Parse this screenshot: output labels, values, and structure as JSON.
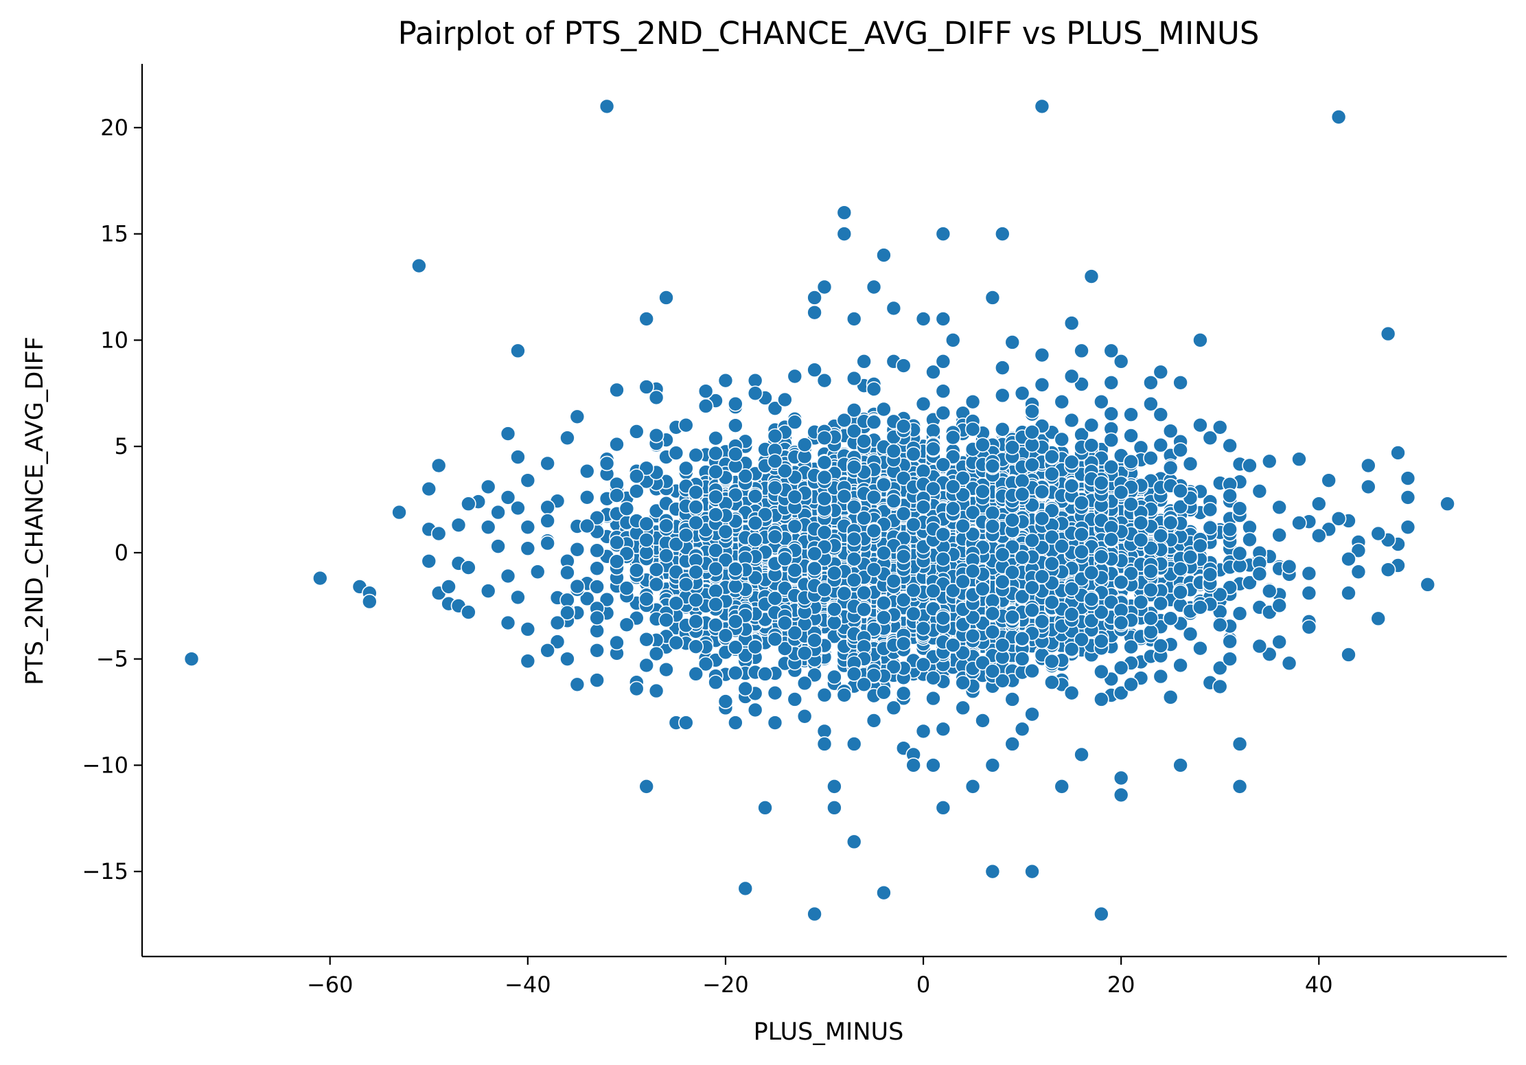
{
  "chart_data": {
    "type": "scatter",
    "title": "Pairplot of PTS_2ND_CHANCE_AVG_DIFF vs PLUS_MINUS",
    "xlabel": "PLUS_MINUS",
    "ylabel": "PTS_2ND_CHANCE_AVG_DIFF",
    "xlim": [
      -79,
      59
    ],
    "ylim": [
      -19,
      23
    ],
    "xticks": [
      -60,
      -40,
      -20,
      0,
      20,
      40
    ],
    "yticks": [
      -15,
      -10,
      -5,
      0,
      5,
      10,
      15,
      20
    ],
    "xtick_labels": [
      "−60",
      "−40",
      "−20",
      "0",
      "20",
      "40"
    ],
    "ytick_labels": [
      "−15",
      "−10",
      "−5",
      "0",
      "5",
      "10",
      "15",
      "20"
    ],
    "grid": false,
    "legend": "none",
    "point_color": "#1f77b4",
    "point_edge_color": "#ffffff",
    "note_dense_core": "Dense core of several thousand points centered near (0, 0), spanning roughly x -38..40 and y -7..8; listed points below are the clearly distinguishable ones.",
    "points": [
      {
        "x": -32,
        "y": 21
      },
      {
        "x": 12,
        "y": 21
      },
      {
        "x": 42,
        "y": 20.5
      },
      {
        "x": -8,
        "y": 16
      },
      {
        "x": -8,
        "y": 15
      },
      {
        "x": 2,
        "y": 15
      },
      {
        "x": 8,
        "y": 15
      },
      {
        "x": -4,
        "y": 14
      },
      {
        "x": -51,
        "y": 13.5
      },
      {
        "x": 17,
        "y": 13
      },
      {
        "x": -26,
        "y": 12
      },
      {
        "x": -11,
        "y": 12
      },
      {
        "x": 7,
        "y": 12
      },
      {
        "x": -10,
        "y": 12.5
      },
      {
        "x": -5,
        "y": 12.5
      },
      {
        "x": -11,
        "y": 11.3
      },
      {
        "x": -7,
        "y": 11
      },
      {
        "x": -28,
        "y": 11
      },
      {
        "x": -3,
        "y": 11.5
      },
      {
        "x": 0,
        "y": 11
      },
      {
        "x": 2,
        "y": 11
      },
      {
        "x": 15,
        "y": 10.8
      },
      {
        "x": -41,
        "y": 9.5
      },
      {
        "x": 3,
        "y": 10
      },
      {
        "x": 28,
        "y": 10
      },
      {
        "x": 47,
        "y": 10.3
      },
      {
        "x": 9,
        "y": 9.9
      },
      {
        "x": 12,
        "y": 9.3
      },
      {
        "x": 16,
        "y": 9.5
      },
      {
        "x": 19,
        "y": 9.5
      },
      {
        "x": 20,
        "y": 9
      },
      {
        "x": 2,
        "y": 9
      },
      {
        "x": -6,
        "y": 9
      },
      {
        "x": -3,
        "y": 9
      },
      {
        "x": 1,
        "y": 8.5
      },
      {
        "x": 8,
        "y": 8.7
      },
      {
        "x": 24,
        "y": 8.5
      },
      {
        "x": -42,
        "y": 5.6
      },
      {
        "x": -35,
        "y": 6.4
      },
      {
        "x": -36,
        "y": 5.4
      },
      {
        "x": -38,
        "y": 4.2
      },
      {
        "x": -41,
        "y": 4.5
      },
      {
        "x": -40,
        "y": 3.4
      },
      {
        "x": -49,
        "y": 4.1
      },
      {
        "x": -50,
        "y": 3
      },
      {
        "x": -44,
        "y": 3.1
      },
      {
        "x": -45,
        "y": 2.4
      },
      {
        "x": -46,
        "y": 2.3
      },
      {
        "x": -43,
        "y": 1.9
      },
      {
        "x": -42,
        "y": 2.6
      },
      {
        "x": -53,
        "y": 1.9
      },
      {
        "x": -50,
        "y": 1.1
      },
      {
        "x": -49,
        "y": 0.9
      },
      {
        "x": -47,
        "y": 1.3
      },
      {
        "x": -44,
        "y": 1.2
      },
      {
        "x": -41,
        "y": 2.1
      },
      {
        "x": -40,
        "y": 1.2
      },
      {
        "x": -50,
        "y": -0.4
      },
      {
        "x": -47,
        "y": -0.5
      },
      {
        "x": -46,
        "y": -0.7
      },
      {
        "x": -43,
        "y": 0.3
      },
      {
        "x": -40,
        "y": 0.2
      },
      {
        "x": -38,
        "y": 1.5
      },
      {
        "x": -61,
        "y": -1.2
      },
      {
        "x": -57,
        "y": -1.6
      },
      {
        "x": -56,
        "y": -1.9
      },
      {
        "x": -56,
        "y": -2.3
      },
      {
        "x": -49,
        "y": -1.9
      },
      {
        "x": -48,
        "y": -1.6
      },
      {
        "x": -48,
        "y": -2.4
      },
      {
        "x": -47,
        "y": -2.5
      },
      {
        "x": -46,
        "y": -2.8
      },
      {
        "x": -44,
        "y": -1.8
      },
      {
        "x": -42,
        "y": -1.1
      },
      {
        "x": -41,
        "y": -2.1
      },
      {
        "x": -42,
        "y": -3.3
      },
      {
        "x": -39,
        "y": -0.9
      },
      {
        "x": -37,
        "y": -3.3
      },
      {
        "x": -40,
        "y": -3.6
      },
      {
        "x": -38,
        "y": -4.6
      },
      {
        "x": -40,
        "y": -5.1
      },
      {
        "x": -36,
        "y": -5
      },
      {
        "x": -35,
        "y": -6.2
      },
      {
        "x": -33,
        "y": -4.6
      },
      {
        "x": -33,
        "y": -6
      },
      {
        "x": -74,
        "y": -5
      },
      {
        "x": -28,
        "y": -11
      },
      {
        "x": -25,
        "y": -8
      },
      {
        "x": -24,
        "y": -8
      },
      {
        "x": -19,
        "y": -8
      },
      {
        "x": -20,
        "y": -7.3
      },
      {
        "x": -15,
        "y": -8
      },
      {
        "x": -12,
        "y": -7.7
      },
      {
        "x": -10,
        "y": -8.4
      },
      {
        "x": -10,
        "y": -9
      },
      {
        "x": -7,
        "y": -9
      },
      {
        "x": -2,
        "y": -9.2
      },
      {
        "x": -1,
        "y": -9.5
      },
      {
        "x": -1,
        "y": -10
      },
      {
        "x": 1,
        "y": -10
      },
      {
        "x": 2,
        "y": -8.3
      },
      {
        "x": 7,
        "y": -10
      },
      {
        "x": 9,
        "y": -9
      },
      {
        "x": 10,
        "y": -8.3
      },
      {
        "x": 16,
        "y": -9.5
      },
      {
        "x": 20,
        "y": -10.6
      },
      {
        "x": 20,
        "y": -11.4
      },
      {
        "x": 26,
        "y": -10
      },
      {
        "x": 32,
        "y": -9
      },
      {
        "x": 32,
        "y": -11
      },
      {
        "x": 5,
        "y": -11
      },
      {
        "x": 14,
        "y": -11
      },
      {
        "x": -9,
        "y": -11
      },
      {
        "x": -16,
        "y": -12
      },
      {
        "x": -9,
        "y": -12
      },
      {
        "x": 2,
        "y": -12
      },
      {
        "x": -7,
        "y": -13.6
      },
      {
        "x": -18,
        "y": -15.8
      },
      {
        "x": -4,
        "y": -16
      },
      {
        "x": 7,
        "y": -15
      },
      {
        "x": 11,
        "y": -15
      },
      {
        "x": -11,
        "y": -17
      },
      {
        "x": 18,
        "y": -17
      },
      {
        "x": 53,
        "y": 2.3
      },
      {
        "x": 51,
        "y": -1.5
      },
      {
        "x": 49,
        "y": 3.5
      },
      {
        "x": 49,
        "y": 2.6
      },
      {
        "x": 49,
        "y": 1.2
      },
      {
        "x": 48,
        "y": 4.7
      },
      {
        "x": 48,
        "y": 0.4
      },
      {
        "x": 48,
        "y": -0.6
      },
      {
        "x": 47,
        "y": 0.6
      },
      {
        "x": 47,
        "y": -0.8
      },
      {
        "x": 46,
        "y": 0.9
      },
      {
        "x": 46,
        "y": -3.1
      },
      {
        "x": 45,
        "y": 4.1
      },
      {
        "x": 45,
        "y": 3.1
      },
      {
        "x": 44,
        "y": 0.5
      },
      {
        "x": 44,
        "y": 0.1
      },
      {
        "x": 44,
        "y": -0.9
      },
      {
        "x": 43,
        "y": 1.5
      },
      {
        "x": 43,
        "y": -0.3
      },
      {
        "x": 43,
        "y": -1.9
      },
      {
        "x": 43,
        "y": -4.8
      },
      {
        "x": 42,
        "y": 1.6
      },
      {
        "x": 41,
        "y": 3.4
      },
      {
        "x": 41,
        "y": 1.1
      },
      {
        "x": 40,
        "y": 2.3
      },
      {
        "x": 40,
        "y": 0.8
      },
      {
        "x": 39,
        "y": -1.9
      },
      {
        "x": 39,
        "y": -3.5
      },
      {
        "x": 38,
        "y": 4.4
      },
      {
        "x": 38,
        "y": 1.4
      },
      {
        "x": 37,
        "y": -5.2
      },
      {
        "x": 36,
        "y": -4.2
      },
      {
        "x": 35,
        "y": 4.3
      },
      {
        "x": 34,
        "y": -4.4
      },
      {
        "x": 33,
        "y": 4.1
      },
      {
        "x": 31,
        "y": -5
      },
      {
        "x": 30,
        "y": 5.9
      },
      {
        "x": 30,
        "y": -6.3
      },
      {
        "x": 29,
        "y": 5.4
      },
      {
        "x": 28,
        "y": 6
      },
      {
        "x": 28,
        "y": -4.5
      },
      {
        "x": 26,
        "y": 8
      },
      {
        "x": 26,
        "y": -5.3
      },
      {
        "x": 24,
        "y": 6.5
      },
      {
        "x": 23,
        "y": 7
      },
      {
        "x": 23,
        "y": 8
      },
      {
        "x": 21,
        "y": 6.5
      },
      {
        "x": 20,
        "y": -6.6
      },
      {
        "x": 19,
        "y": 8
      },
      {
        "x": 18,
        "y": 7.1
      },
      {
        "x": 18,
        "y": -6.9
      },
      {
        "x": 17,
        "y": 6
      },
      {
        "x": 15,
        "y": 8.3
      },
      {
        "x": 14,
        "y": 7.1
      },
      {
        "x": 12,
        "y": 7.9
      },
      {
        "x": 10,
        "y": 7.5
      },
      {
        "x": 8,
        "y": 7.4
      },
      {
        "x": 5,
        "y": 7.1
      },
      {
        "x": 2,
        "y": 7.6
      },
      {
        "x": 0,
        "y": 7
      },
      {
        "x": -2,
        "y": 8.8
      },
      {
        "x": -5,
        "y": 7.7
      },
      {
        "x": -7,
        "y": 8.2
      },
      {
        "x": -10,
        "y": 8.1
      },
      {
        "x": -13,
        "y": 8.3
      },
      {
        "x": -17,
        "y": 8.1
      },
      {
        "x": -17,
        "y": 7.5
      },
      {
        "x": -20,
        "y": 8.1
      },
      {
        "x": -22,
        "y": 7.6
      },
      {
        "x": -22,
        "y": 6.9
      },
      {
        "x": -27,
        "y": 7.7
      },
      {
        "x": -28,
        "y": 7.8
      },
      {
        "x": -27,
        "y": 7.3
      },
      {
        "x": -25,
        "y": 5.9
      },
      {
        "x": -29,
        "y": 5.7
      },
      {
        "x": -31,
        "y": 5.1
      },
      {
        "x": -32,
        "y": 4.2
      },
      {
        "x": -24,
        "y": 6
      },
      {
        "x": -19,
        "y": 7
      },
      {
        "x": -14,
        "y": 7.2
      },
      {
        "x": -11,
        "y": 8.6
      },
      {
        "x": -8,
        "y": -6.7
      },
      {
        "x": -6,
        "y": -6.2
      },
      {
        "x": -3,
        "y": -7.3
      },
      {
        "x": -5,
        "y": -7.9
      },
      {
        "x": 0,
        "y": -8.4
      },
      {
        "x": 4,
        "y": -7.3
      },
      {
        "x": 6,
        "y": -7.9
      },
      {
        "x": 9,
        "y": -6.9
      },
      {
        "x": 11,
        "y": -7.6
      },
      {
        "x": 13,
        "y": -6.1
      },
      {
        "x": 15,
        "y": -6.6
      },
      {
        "x": 18,
        "y": -5.6
      },
      {
        "x": 22,
        "y": -5.9
      },
      {
        "x": 25,
        "y": -6.8
      },
      {
        "x": 21,
        "y": -6.2
      },
      {
        "x": -27,
        "y": -6.5
      },
      {
        "x": -29,
        "y": -6.4
      },
      {
        "x": -28,
        "y": -5.3
      },
      {
        "x": -26,
        "y": -5.5
      },
      {
        "x": -23,
        "y": -5.7
      },
      {
        "x": -21,
        "y": -6.1
      },
      {
        "x": -18,
        "y": -6.4
      },
      {
        "x": -15,
        "y": -6.6
      },
      {
        "x": -13,
        "y": -6.9
      },
      {
        "x": -20,
        "y": -7
      },
      {
        "x": -17,
        "y": -7.4
      }
    ],
    "core": {
      "x_center": 0,
      "y_center": 0,
      "x_range": [
        -38,
        40
      ],
      "y_range": [
        -7,
        8
      ],
      "count": 7000
    }
  }
}
